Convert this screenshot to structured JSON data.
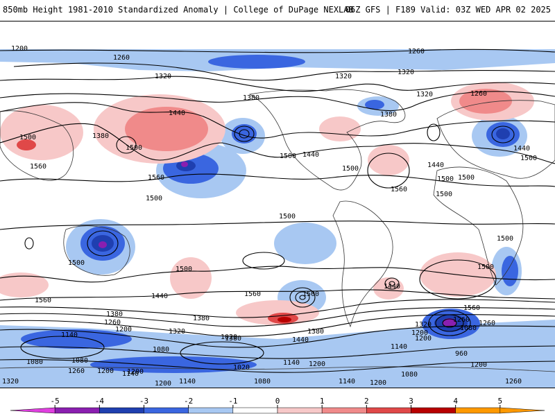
{
  "header": {
    "title": "850mb Height 1981-2010 Standardized Anomaly | College of DuPage NEXLAB",
    "run_info": "06Z GFS | F189 Valid: 03Z WED APR 02 2025"
  },
  "contour_labels": [
    "1200",
    "1260",
    "1260",
    "1320",
    "1320",
    "1320",
    "1320",
    "1260",
    "1380",
    "1440",
    "1380",
    "1380",
    "1500",
    "1500",
    "1500",
    "1560",
    "1560",
    "1500",
    "1440",
    "1500",
    "1500",
    "1500",
    "1440",
    "1500",
    "1560",
    "1500",
    "1500",
    "1500",
    "1440",
    "1500",
    "1500",
    "1500",
    "1560",
    "1440",
    "1560",
    "1500",
    "1440",
    "1560",
    "1380",
    "1380",
    "1260",
    "1200",
    "1140",
    "1320",
    "1380",
    "1320",
    "1260",
    "1200",
    "1140",
    "1080",
    "1080",
    "1200",
    "1080",
    "1260",
    "1200",
    "1140",
    "1020",
    "1080",
    "1140",
    "1200",
    "1140",
    "1200",
    "1080",
    "1200",
    "1260",
    "1320",
    "1200",
    "1140",
    "960",
    "1200",
    "1260",
    "1080",
    "1020",
    "1380",
    "1440"
  ],
  "colorbar": {
    "ticks": [
      "-5",
      "-4",
      "-3",
      "-2",
      "-1",
      "0",
      "1",
      "2",
      "3",
      "4",
      "5"
    ],
    "colors": [
      "#e040e0",
      "#8a1fb0",
      "#1f3fb0",
      "#3a66e0",
      "#a8c8f2",
      "#ffffff",
      "#f7c8c8",
      "#f08a8a",
      "#e04848",
      "#b80000",
      "#ff9900"
    ]
  }
}
